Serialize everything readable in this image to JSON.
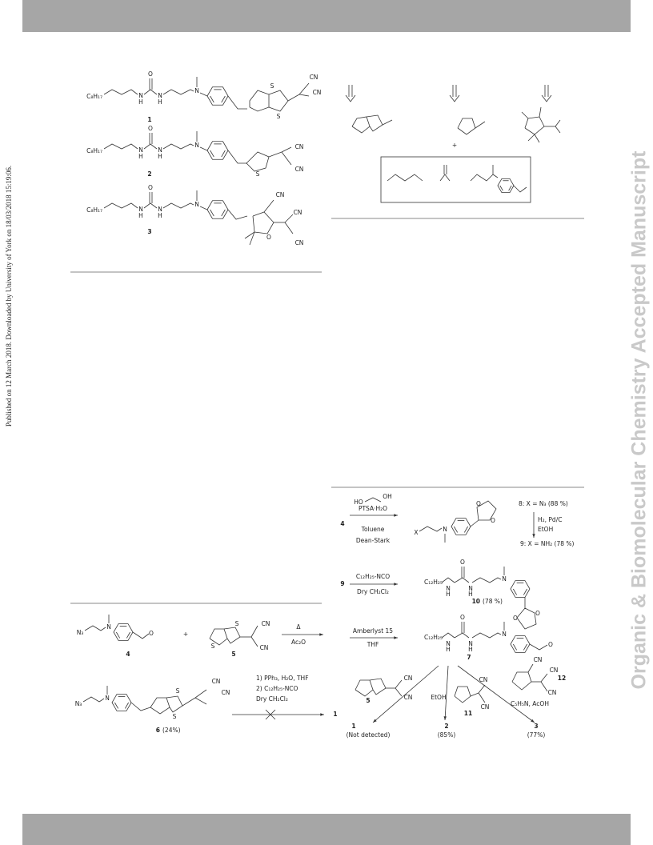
{
  "side_note": "Published on 12 March 2018. Downloaded by University of York on 18/03/2018 15:19:06.",
  "watermark": "Organic & Biomolecular Chemistry Accepted Manuscript",
  "atoms": {
    "N": "N",
    "H": "H",
    "O": "O",
    "S": "S",
    "CN": "CN",
    "N3": "N₃",
    "X": "X",
    "HO": "HO",
    "OH": "OH"
  },
  "figure1": {
    "compounds": [
      {
        "label": "1",
        "alkyl": "C₈H₁₇"
      },
      {
        "label": "2",
        "alkyl": "C₈H₁₇"
      },
      {
        "label": "3",
        "alkyl": "C₈H₁₇"
      }
    ]
  },
  "figure2": {
    "plus": "+"
  },
  "scheme1": {
    "compound4": "4",
    "plus": "+",
    "compound5": "5",
    "heat": "Δ",
    "solvent": "Ac₂O",
    "compound6": "6",
    "yield6": "(24%)",
    "steps": [
      "1) PPh₃, H₂O, THF",
      "2) C₁₂H₂₅-NCO",
      "Dry CH₂Cl₂"
    ],
    "target": "1"
  },
  "scheme2": {
    "start": "4",
    "step1": [
      "PTSA·H₂O",
      "Toluene",
      "Dean-Stark"
    ],
    "product8": "8: X = N₃ (88 %)",
    "step2": [
      "H₂, Pd/C",
      "EtOH"
    ],
    "product9": "9: X = NH₂ (78 %)",
    "start9": "9",
    "step3": [
      "C₁₂H₂₅-NCO",
      "Dry CH₂Cl₂"
    ],
    "alkyl": "C₁₂H₂₅",
    "compound10": "10",
    "yield10": "(78 %)",
    "step4": [
      "Amberlyst 15",
      "THF"
    ],
    "compound7": "7",
    "reagent5": "5",
    "solventEtOH": "EtOH",
    "reagent11": "11",
    "reagent12": "12",
    "conditions12": "C₅H₅N, AcOH",
    "outcomes": [
      {
        "label": "1",
        "note": "(Not detected)"
      },
      {
        "label": "2",
        "note": "(85%)"
      },
      {
        "label": "3",
        "note": "(77%)"
      }
    ]
  }
}
